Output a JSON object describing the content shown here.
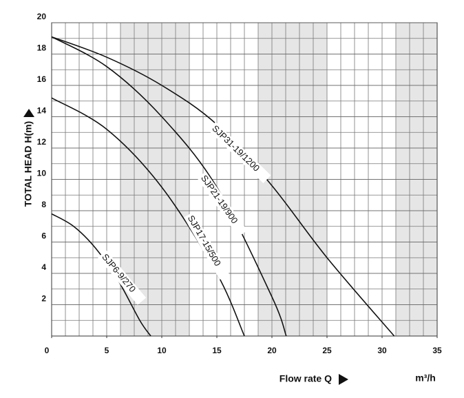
{
  "chart_data": {
    "type": "line",
    "y_label": "TOTAL HEAD H(m)",
    "x_label": "Flow rate Q",
    "x_unit": "m³/h",
    "xlim": [
      0,
      35
    ],
    "ylim": [
      0,
      20
    ],
    "xticks": [
      0,
      5,
      10,
      15,
      20,
      25,
      30,
      35
    ],
    "yticks": [
      2,
      4,
      6,
      8,
      10,
      12,
      14,
      16,
      18,
      20
    ],
    "series": [
      {
        "name": "SJP6-9/270",
        "color": "#111111",
        "x": [
          0,
          2,
          4,
          6,
          8,
          9
        ],
        "values": [
          7.8,
          7.0,
          5.6,
          3.6,
          1.0,
          0
        ]
      },
      {
        "name": "SJP17-15/500",
        "color": "#111111",
        "x": [
          0,
          5,
          10,
          15,
          17.5
        ],
        "values": [
          15.2,
          13.2,
          9.5,
          4.0,
          0
        ]
      },
      {
        "name": "SJP21-19/900",
        "color": "#111111",
        "x": [
          0,
          5,
          10,
          15,
          20,
          21.3
        ],
        "values": [
          19.1,
          17.2,
          14.0,
          9.5,
          2.5,
          0
        ]
      },
      {
        "name": "SJP31-19/1200",
        "color": "#111111",
        "x": [
          0,
          5,
          10,
          15,
          20,
          25,
          31.1
        ],
        "values": [
          19.1,
          17.8,
          16.0,
          13.5,
          9.6,
          5.0,
          0
        ]
      }
    ]
  }
}
